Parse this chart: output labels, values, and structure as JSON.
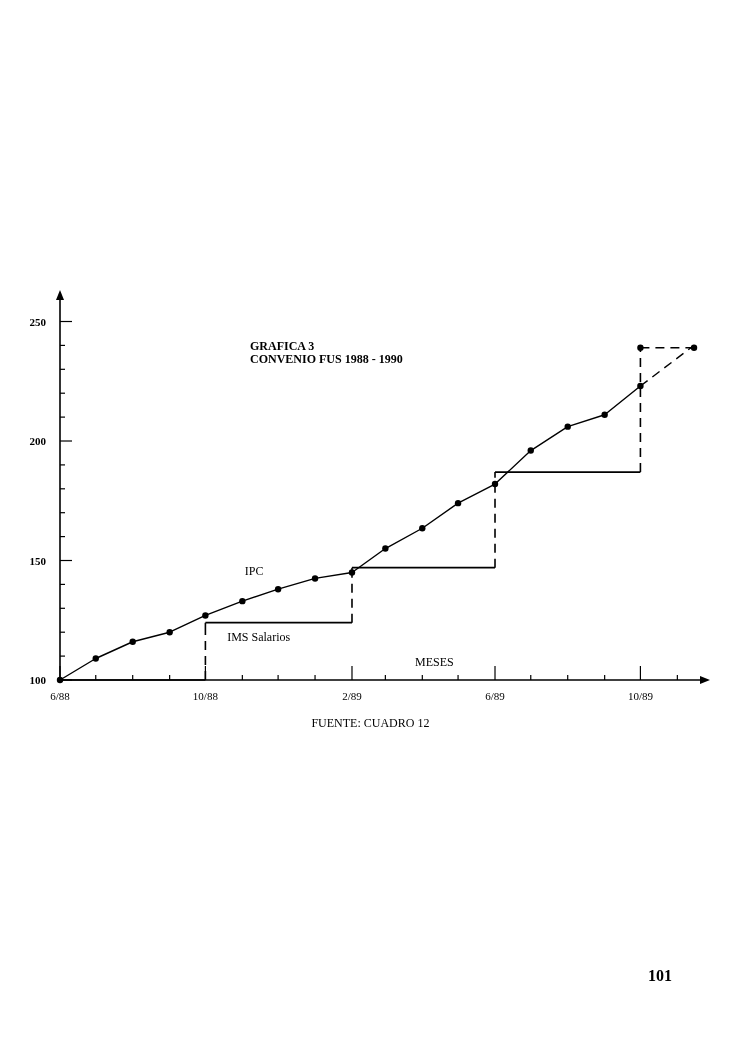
{
  "chart_data": {
    "type": "line",
    "title": "GRAFICA 3",
    "subtitle": "CONVENIO FUS 1988 - 1990",
    "xlabel": "MESES",
    "annotations": [
      "FUENTE: CUADRO 12",
      "101"
    ],
    "xlim": [
      "1988-06",
      "1989-11-20"
    ],
    "xticks": [
      {
        "value": "1988-06",
        "label": "6/88"
      },
      {
        "value": "1988-07",
        "label": null
      },
      {
        "value": "1988-08",
        "label": null
      },
      {
        "value": "1988-09",
        "label": null
      },
      {
        "value": "1988-10",
        "label": "10/88"
      },
      {
        "value": "1988-11",
        "label": null
      },
      {
        "value": "1988-12",
        "label": null
      },
      {
        "value": "1989-01",
        "label": null
      },
      {
        "value": "1989-02",
        "label": "2/89"
      },
      {
        "value": "1989-03",
        "label": null
      },
      {
        "value": "1989-04",
        "label": null
      },
      {
        "value": "1989-05",
        "label": null
      },
      {
        "value": "1989-06",
        "label": "6/89"
      },
      {
        "value": "1989-07",
        "label": null
      },
      {
        "value": "1989-08",
        "label": null
      },
      {
        "value": "1989-09",
        "label": null
      },
      {
        "value": "1989-10",
        "label": "10/89"
      },
      {
        "value": "1989-11",
        "label": null
      }
    ],
    "ylim": [
      100,
      259
    ],
    "yticks": [
      100,
      {
        "value": 110,
        "label": null
      },
      {
        "value": 120,
        "label": null
      },
      {
        "value": 130,
        "label": null
      },
      {
        "value": 140,
        "label": null
      },
      150,
      {
        "value": 160,
        "label": null
      },
      {
        "value": 170,
        "label": null
      },
      {
        "value": 180,
        "label": null
      },
      {
        "value": 190,
        "label": null
      },
      200,
      {
        "value": 210,
        "label": null
      },
      {
        "value": 220,
        "label": null
      },
      {
        "value": 230,
        "label": null
      },
      {
        "value": 240,
        "label": null
      },
      250
    ],
    "grid": false,
    "series": [
      {
        "name": "IPC",
        "color": "#000000",
        "marker": "circle",
        "line_style": "solid",
        "x": [
          "1988-06",
          "1988-07",
          "1988-08",
          "1988-09",
          "1988-10",
          "1988-11",
          "1988-12",
          "1989-01",
          "1989-02",
          "1989-03",
          "1989-04",
          "1989-05",
          "1989-06",
          "1989-07",
          "1989-08",
          "1989-09",
          "1989-10"
        ],
        "values": [
          100,
          109,
          116,
          120,
          127,
          133,
          138,
          142.5,
          145,
          155,
          163.5,
          174,
          182,
          196,
          206,
          211,
          223
        ]
      },
      {
        "type": "line",
        "color": "#000000",
        "marker": "none",
        "line_style": "dashed",
        "x": [
          "1989-10",
          "1989-11-15"
        ],
        "values": [
          223,
          240
        ]
      },
      {
        "name": "IMS Salarios",
        "type": "step",
        "color": "#000000",
        "marker": "none",
        "line_style": "dashed",
        "x": [
          "1988-06",
          "1988-10",
          "1989-02",
          "1989-06",
          "1989-10"
        ],
        "values": [
          100,
          124,
          147,
          187,
          239
        ]
      },
      {
        "type": "line",
        "color": "#000000",
        "marker": "circle",
        "line_style": "dashed",
        "x": [
          "1989-10",
          "1989-11-15"
        ],
        "values": [
          239,
          239
        ]
      }
    ]
  }
}
